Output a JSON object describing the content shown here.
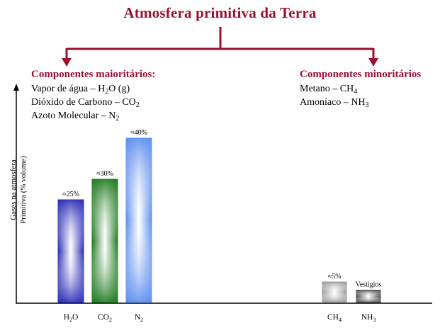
{
  "title": "Atmosfera primitiva da Terra",
  "major": {
    "heading": "Componentes maioritários:",
    "lines": [
      [
        "Vapor de água – H",
        "2",
        "O (g)"
      ],
      [
        "Dióxido de Carbono – CO",
        "2",
        ""
      ],
      [
        "Azoto Molecular – N",
        "2",
        ""
      ]
    ]
  },
  "minor": {
    "heading": "Componentes minoritários",
    "lines": [
      [
        "Metano – CH",
        "4",
        ""
      ],
      [
        "Amoníaco – NH",
        "3",
        ""
      ]
    ]
  },
  "ylabel": [
    "Gases na atmosfera",
    "Primitiva (% volume)"
  ],
  "chart_data": {
    "type": "bar",
    "categories": [
      {
        "main": "H",
        "sub": "2",
        "tail": "O"
      },
      {
        "main": "CO",
        "sub": "2",
        "tail": ""
      },
      {
        "main": "N",
        "sub": "2",
        "tail": ""
      },
      {
        "main": "CH",
        "sub": "4",
        "tail": ""
      },
      {
        "main": "NH",
        "sub": "3",
        "tail": ""
      }
    ],
    "values": [
      25,
      30,
      40,
      5,
      3
    ],
    "value_labels": [
      "≈25%",
      "≈30%",
      "≈40%",
      "≈5%",
      "Vestígios"
    ],
    "colors": [
      "#2d2db8",
      "#1f7a1f",
      "#5f8fee",
      "#9a9a9a",
      "#4a4a4a"
    ],
    "ylim": [
      0,
      50
    ],
    "grid": false
  }
}
